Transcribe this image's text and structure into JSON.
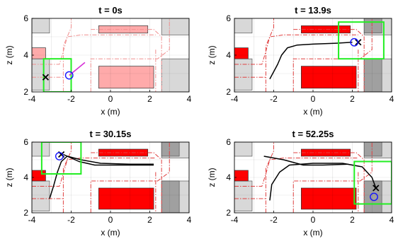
{
  "chart_data": [
    {
      "type": "scatter",
      "title": "t = 0s",
      "xlabel": "x (m)",
      "ylabel": "z (m)",
      "xlim": [
        -4,
        4
      ],
      "ylim": [
        2,
        6
      ],
      "xticks": [
        "-4",
        "-2",
        "0",
        "2",
        "4"
      ],
      "yticks": [
        "2",
        "4",
        "6"
      ],
      "grid": true,
      "trajectory": [],
      "robot": [
        -2.1,
        2.9
      ],
      "goal": [
        -3.3,
        2.8
      ],
      "heading_end": [
        -1.3,
        3.6
      ],
      "sensor_window": [
        [
          -3.4,
          2.0
        ],
        [
          -2.0,
          3.8
        ]
      ],
      "highlight_obstacles": [
        [
          [
            -0.6,
            2.2
          ],
          [
            2.2,
            3.4
          ]
        ],
        [
          [
            -0.6,
            5.2
          ],
          [
            1.9,
            5.6
          ]
        ]
      ]
    },
    {
      "type": "scatter",
      "title": "t = 13.9s",
      "xlabel": "x (m)",
      "ylabel": "z (m)",
      "xlim": [
        -4,
        4
      ],
      "ylim": [
        2,
        6
      ],
      "xticks": [
        "-4",
        "-2",
        "0",
        "2",
        "4"
      ],
      "yticks": [
        "2",
        "4",
        "6"
      ],
      "grid": true,
      "trajectory": [
        [
          [
            -2.2,
            2.7
          ],
          [
            -1.8,
            3.5
          ],
          [
            -1.6,
            4.0
          ],
          [
            -1.3,
            4.4
          ],
          [
            -0.8,
            4.55
          ],
          [
            0,
            4.6
          ],
          [
            1.2,
            4.65
          ],
          [
            2.0,
            4.7
          ]
        ]
      ],
      "robot": [
        2.1,
        4.7
      ],
      "goal": [
        2.3,
        4.7
      ],
      "sensor_window": [
        [
          1.3,
          3.8
        ],
        [
          3.6,
          5.8
        ]
      ]
    },
    {
      "type": "scatter",
      "title": "t = 30.15s",
      "xlabel": "x (m)",
      "ylabel": "z (m)",
      "xlim": [
        -4,
        4
      ],
      "ylim": [
        2,
        6
      ],
      "xticks": [
        "-4",
        "-2",
        "0",
        "2",
        "4"
      ],
      "yticks": [
        "2",
        "4",
        "6"
      ],
      "grid": true,
      "trajectory": [
        [
          [
            -3.1,
            2.8
          ],
          [
            -2.9,
            3.5
          ],
          [
            -2.7,
            4.3
          ],
          [
            -2.5,
            4.9
          ],
          [
            -2.2,
            5.2
          ],
          [
            -1.5,
            5.0
          ],
          [
            -0.5,
            4.8
          ],
          [
            1.0,
            4.75
          ],
          [
            2.2,
            4.75
          ]
        ],
        [
          [
            -2.4,
            5.3
          ],
          [
            -1.6,
            4.9
          ],
          [
            -0.8,
            4.7
          ],
          [
            0.6,
            4.7
          ],
          [
            2.2,
            4.7
          ]
        ]
      ],
      "robot": [
        -2.6,
        5.2
      ],
      "goal": [
        -2.5,
        5.3
      ],
      "sensor_window": [
        [
          -3.5,
          4.2
        ],
        [
          -1.5,
          6.0
        ]
      ]
    },
    {
      "type": "scatter",
      "title": "t = 52.25s",
      "xlabel": "x (m)",
      "ylabel": "z (m)",
      "xlim": [
        -4,
        4
      ],
      "ylim": [
        2,
        6
      ],
      "xticks": [
        "-4",
        "-2",
        "0",
        "2",
        "4"
      ],
      "yticks": [
        "2",
        "4",
        "6"
      ],
      "grid": true,
      "trajectory": [
        [
          [
            -2.2,
            2.7
          ],
          [
            -2.1,
            3.6
          ],
          [
            -1.7,
            4.3
          ],
          [
            -1.2,
            4.7
          ],
          [
            0,
            4.8
          ],
          [
            1.5,
            4.8
          ],
          [
            2.5,
            4.6
          ],
          [
            3.0,
            4.0
          ],
          [
            3.2,
            3.4
          ]
        ],
        [
          [
            -2.5,
            5.2
          ],
          [
            -1.5,
            5.0
          ],
          [
            -0.5,
            4.7
          ],
          [
            0.5,
            4.7
          ],
          [
            1.8,
            4.75
          ]
        ]
      ],
      "robot": [
        3.1,
        2.9
      ],
      "goal": [
        3.2,
        3.4
      ],
      "sensor_window": [
        [
          2.1,
          2.5
        ],
        [
          4.0,
          4.9
        ]
      ]
    }
  ],
  "colors": {
    "obstacle": "#ff0000",
    "inflated": "#ffaaaa",
    "gray": "#a0a0a0",
    "light_gray": "#d8d8d8",
    "path": "#000000",
    "window": "#22ee22",
    "robot": "#1414ff",
    "heading": "#d62fd6",
    "route": "#e04040"
  }
}
